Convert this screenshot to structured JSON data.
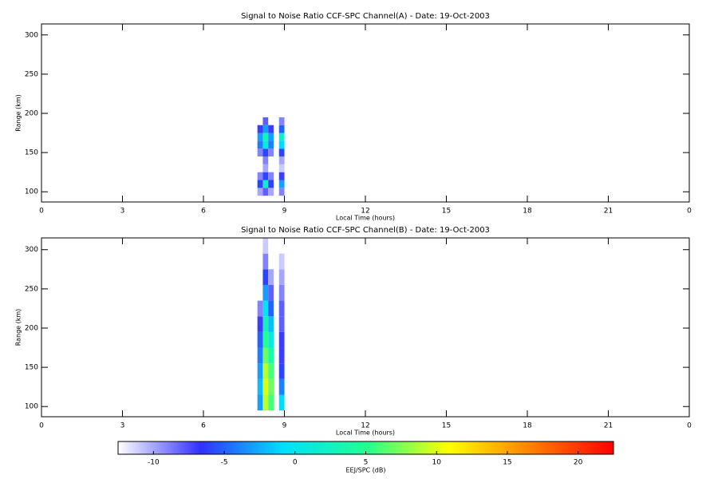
{
  "chart_data": [
    {
      "type": "heatmap",
      "title": "Signal to Noise Ratio CCF-SPC Channel(A) - Date: 19-Oct-2003",
      "x_label": "Local Time (hours)",
      "y_label": "Range (km)",
      "xlim": [
        0,
        24
      ],
      "xticks": [
        0,
        3,
        6,
        9,
        12,
        15,
        18,
        21,
        {
          "value": 24,
          "label": "0"
        }
      ],
      "ylim": [
        87,
        314
      ],
      "yticks": [
        100,
        150,
        200,
        250,
        300
      ],
      "xbins": [
        8.0,
        8.2,
        8.4,
        8.6,
        8.8,
        9.0
      ],
      "ybins": [
        95,
        105,
        115,
        125,
        135,
        145,
        155,
        165,
        175,
        185,
        195
      ],
      "values": [
        [
          -10,
          -8,
          -10,
          null,
          -9
        ],
        [
          -6,
          2,
          -6,
          null,
          -3
        ],
        [
          -9,
          -6,
          -9,
          null,
          -7
        ],
        [
          null,
          -10,
          null,
          null,
          -11
        ],
        [
          null,
          -9,
          null,
          null,
          -10
        ],
        [
          -9,
          -6,
          -9,
          null,
          -6
        ],
        [
          -4,
          1,
          -4,
          null,
          -1
        ],
        [
          -3,
          3,
          -3,
          null,
          2
        ],
        [
          -7,
          -3,
          -7,
          null,
          -5
        ],
        [
          null,
          -8,
          null,
          null,
          -9
        ]
      ]
    },
    {
      "type": "heatmap",
      "title": "Signal to Noise Ratio CCF-SPC Channel(B) - Date: 19-Oct-2003",
      "x_label": "Local Time (hours)",
      "y_label": "Range (km)",
      "xlim": [
        0,
        24
      ],
      "xticks": [
        0,
        3,
        6,
        9,
        12,
        15,
        18,
        21,
        {
          "value": 24,
          "label": "0"
        }
      ],
      "ylim": [
        87,
        315
      ],
      "yticks": [
        100,
        150,
        200,
        250,
        300
      ],
      "xbins": [
        8.0,
        8.2,
        8.4,
        8.6,
        8.8,
        9.0
      ],
      "ybins": [
        95,
        115,
        135,
        155,
        175,
        195,
        215,
        235,
        255,
        275,
        295,
        315
      ],
      "values": [
        [
          -3,
          9,
          6,
          null,
          -1
        ],
        [
          -2,
          10,
          7,
          null,
          -4
        ],
        [
          -3,
          9,
          6,
          null,
          -6
        ],
        [
          -4,
          7,
          4,
          null,
          -7
        ],
        [
          -5,
          5,
          1,
          null,
          -7
        ],
        [
          -7,
          3,
          -2,
          null,
          -8
        ],
        [
          -9,
          0,
          -5,
          null,
          -8
        ],
        [
          null,
          -3,
          -8,
          null,
          -9
        ],
        [
          null,
          -6,
          -10,
          null,
          -10
        ],
        [
          null,
          -9,
          null,
          null,
          -11
        ],
        [
          null,
          -11,
          null,
          null,
          null
        ]
      ]
    },
    {
      "type": "colorbar",
      "label": "EEJ/SPC (dB)",
      "zlim": [
        -12.5,
        22.5
      ],
      "ticks": [
        -10,
        -5,
        0,
        5,
        10,
        15,
        20
      ],
      "colors": [
        "#ffffff",
        "#3030ff",
        "#00e0ff",
        "#20ff90",
        "#ffff00",
        "#ff8000",
        "#ff0000"
      ]
    }
  ]
}
